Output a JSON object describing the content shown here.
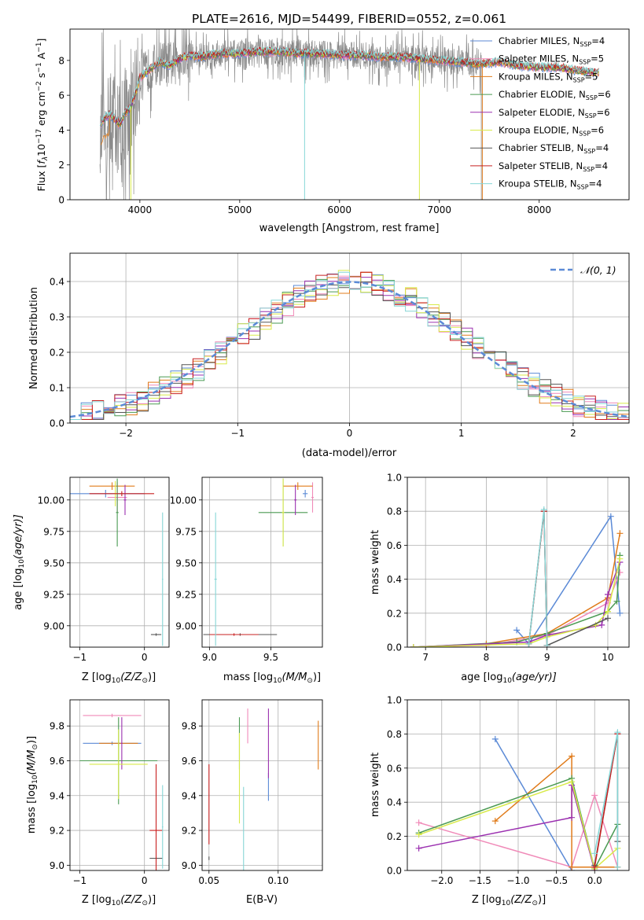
{
  "figure": {
    "title": "PLATE=2616, MJD=54499, FIBERID=0552, z=0.061"
  },
  "colors": {
    "chabrier_miles": "#5b8ad6",
    "salpeter_miles": "#f08ab8",
    "kroupa_miles": "#e07b1a",
    "chabrier_elodie": "#4a9a52",
    "salpeter_elodie": "#9b30b0",
    "kroupa_elodie": "#d8ea4a",
    "chabrier_stelib": "#555555",
    "salpeter_stelib": "#c82020",
    "kroupa_stelib": "#86d6d6",
    "observed": "#8a8a8a",
    "normal": "#5b8ad6"
  },
  "chart_data": [
    {
      "id": "spectrum",
      "type": "line",
      "xlabel": "wavelength [Angstrom, rest frame]",
      "ylabel_main": "Flux [",
      "ylabel_tail": "erg cm",
      "ylabel_tail2": " s",
      "ylabel_tail3": " A",
      "ylabel_flam": "f",
      "ylabel_scale": "10",
      "ylabel_exp17": "−17",
      "ylabel_exp2": "−2",
      "ylabel_exp1": "−1",
      "ylabel_close": "]",
      "xlim": [
        3300,
        8900
      ],
      "ylim": [
        0,
        9.8
      ],
      "xticks": [
        4000,
        5000,
        6000,
        7000,
        8000
      ],
      "yticks": [
        0,
        2,
        4,
        6,
        8
      ],
      "legend_position": "upper-right",
      "legend": [
        {
          "name": "Chabrier MILES",
          "n": "4",
          "color_key": "chabrier_miles"
        },
        {
          "name": "Salpeter MILES",
          "n": "5",
          "color_key": "salpeter_miles"
        },
        {
          "name": "Kroupa MILES",
          "n": "5",
          "color_key": "kroupa_miles"
        },
        {
          "name": "Chabrier ELODIE",
          "n": "6",
          "color_key": "chabrier_elodie"
        },
        {
          "name": "Salpeter ELODIE",
          "n": "6",
          "color_key": "salpeter_elodie"
        },
        {
          "name": "Kroupa ELODIE",
          "n": "6",
          "color_key": "kroupa_elodie"
        },
        {
          "name": "Chabrier STELIB",
          "n": "4",
          "color_key": "chabrier_stelib"
        },
        {
          "name": "Salpeter STELIB",
          "n": "4",
          "color_key": "salpeter_stelib"
        },
        {
          "name": "Kroupa STELIB",
          "n": "4",
          "color_key": "kroupa_stelib"
        }
      ],
      "legend_n_prefix": "N",
      "legend_n_sub": "SSP",
      "legend_n_eq": "=",
      "continuum": {
        "x": [
          3600,
          3650,
          3700,
          3750,
          3800,
          3850,
          3900,
          3950,
          4000,
          4100,
          4200,
          4300,
          4400,
          4500,
          4600,
          4800,
          5000,
          5200,
          5400,
          5600,
          5800,
          6000,
          6200,
          6400,
          6600,
          6800,
          7000,
          7200,
          7400,
          7600,
          7800,
          8000,
          8200,
          8400,
          8600
        ],
        "y": [
          4.3,
          4.7,
          4.9,
          4.6,
          4.3,
          5.0,
          5.2,
          6.0,
          7.0,
          7.5,
          7.9,
          7.7,
          8.1,
          8.3,
          8.2,
          8.4,
          8.4,
          8.5,
          8.5,
          8.4,
          8.4,
          8.3,
          8.3,
          8.2,
          8.2,
          8.1,
          8.0,
          7.9,
          7.8,
          7.9,
          7.7,
          7.6,
          7.6,
          7.4,
          7.3
        ]
      },
      "observed_xmax": 7420,
      "model_xmax": 8600,
      "model_drop_x": [
        3910,
        5650,
        6800,
        7430
      ]
    },
    {
      "id": "residuals",
      "type": "histogram",
      "xlabel": "(data-model)/error",
      "ylabel": "Normed distribution",
      "xlim": [
        -2.5,
        2.5
      ],
      "ylim": [
        0,
        0.48
      ],
      "xticks": [
        -2,
        -1,
        0,
        1,
        2
      ],
      "xtick_labels": [
        "−2",
        "−1",
        "0",
        "1",
        "2"
      ],
      "yticks": [
        0.0,
        0.1,
        0.2,
        0.3,
        0.4
      ],
      "ytick_labels": [
        "0.0",
        "0.1",
        "0.2",
        "0.3",
        "0.4"
      ],
      "bin_width": 0.1,
      "legend_label": "𝒩(0, 1)",
      "legend_position": "upper-right",
      "normal": {
        "mean": 0,
        "sigma": 1
      }
    },
    {
      "id": "age-vs-Z",
      "type": "errorbar",
      "xlabel_main": "Z [log",
      "xlabel_sub": "10",
      "xlabel_arg": "(Z/Z",
      "xlabel_sun": "⊙",
      "xlabel_close": ")]",
      "ylabel_main": "age  [log",
      "ylabel_sub": "10",
      "ylabel_arg": "(age/yr)]",
      "xlim": [
        -1.15,
        0.38
      ],
      "ylim": [
        8.83,
        10.18
      ],
      "xticks": [
        -1,
        0
      ],
      "xtick_labels": [
        "−1",
        "0"
      ],
      "yticks": [
        9.0,
        9.25,
        9.5,
        9.75,
        10.0
      ],
      "ytick_labels": [
        "9.00",
        "9.25",
        "9.50",
        "9.75",
        "10.00"
      ],
      "points": [
        {
          "c": "chabrier_miles",
          "x": -0.6,
          "xe": 0.6,
          "y": 10.05,
          "ye": 0.03
        },
        {
          "c": "salpeter_miles",
          "x": -0.42,
          "xe": 0.15,
          "y": 10.02,
          "ye": 0.12
        },
        {
          "c": "kroupa_miles",
          "x": -0.5,
          "xe": 0.35,
          "y": 10.11,
          "ye": 0.03
        },
        {
          "c": "chabrier_elodie",
          "x": -0.42,
          "xe": 0.02,
          "y": 9.9,
          "ye": 0.27
        },
        {
          "c": "salpeter_elodie",
          "x": -0.3,
          "xe": 0.02,
          "y": 10.0,
          "ye": 0.12
        },
        {
          "c": "kroupa_elodie",
          "x": -0.45,
          "xe": 0.03,
          "y": 10.05,
          "ye": 0.1
        },
        {
          "c": "chabrier_stelib",
          "x": 0.18,
          "xe": 0.08,
          "y": 8.93,
          "ye": 0.01
        },
        {
          "c": "salpeter_stelib",
          "x": -0.35,
          "xe": 0.5,
          "y": 10.05,
          "ye": 0.02
        },
        {
          "c": "kroupa_stelib",
          "x": 0.28,
          "xe": 0.01,
          "y": 9.37,
          "ye": 0.53
        }
      ]
    },
    {
      "id": "age-vs-mass",
      "type": "errorbar",
      "xlabel_main": "mass [log",
      "xlabel_sub": "10",
      "xlabel_arg": "(M/M",
      "xlabel_sun": "⊙",
      "xlabel_close": ")]",
      "xlim": [
        8.94,
        9.92
      ],
      "ylim": [
        8.83,
        10.18
      ],
      "xticks": [
        9.0,
        9.5
      ],
      "xtick_labels": [
        "9.0",
        "9.5"
      ],
      "yticks": [
        9.0,
        9.25,
        9.5,
        9.75,
        10.0
      ],
      "ytick_labels": [
        "9.00",
        "9.25",
        "9.50",
        "9.75",
        "10.00"
      ],
      "points": [
        {
          "c": "chabrier_miles",
          "x": 9.78,
          "xe": 0.02,
          "y": 10.05,
          "ye": 0.03
        },
        {
          "c": "salpeter_miles",
          "x": 9.84,
          "xe": 0.01,
          "y": 10.02,
          "ye": 0.12
        },
        {
          "c": "kroupa_miles",
          "x": 9.72,
          "xe": 0.12,
          "y": 10.11,
          "ye": 0.03
        },
        {
          "c": "chabrier_elodie",
          "x": 9.6,
          "xe": 0.2,
          "y": 9.9,
          "ye": 0.27
        },
        {
          "c": "salpeter_elodie",
          "x": 9.7,
          "xe": 0.01,
          "y": 10.0,
          "ye": 0.12
        },
        {
          "c": "kroupa_elodie",
          "x": 9.6,
          "xe": 0.01,
          "y": 9.9,
          "ye": 0.27
        },
        {
          "c": "chabrier_stelib",
          "x": 9.25,
          "xe": 0.3,
          "y": 8.93,
          "ye": 0.01
        },
        {
          "c": "salpeter_stelib",
          "x": 9.2,
          "xe": 0.2,
          "y": 8.93,
          "ye": 0.01
        },
        {
          "c": "kroupa_stelib",
          "x": 9.05,
          "xe": 0.01,
          "y": 9.37,
          "ye": 0.53
        }
      ]
    },
    {
      "id": "weight-vs-age",
      "type": "line",
      "xlabel_main": "age  [log",
      "xlabel_sub": "10",
      "xlabel_arg": "(age/yr)]",
      "ylabel": "mass weight",
      "xlim": [
        6.7,
        10.35
      ],
      "ylim": [
        0,
        1.0
      ],
      "xticks": [
        7,
        8,
        9,
        10
      ],
      "xtick_labels": [
        "7",
        "8",
        "9",
        "10"
      ],
      "yticks": [
        0.0,
        0.2,
        0.4,
        0.6,
        0.8,
        1.0
      ],
      "ytick_labels": [
        "0.0",
        "0.2",
        "0.4",
        "0.6",
        "0.8",
        "1.0"
      ],
      "series": [
        {
          "c": "chabrier_miles",
          "x": [
            8.5,
            8.7,
            10.05,
            10.2
          ],
          "y": [
            0.1,
            0.02,
            0.77,
            0.2
          ]
        },
        {
          "c": "salpeter_miles",
          "x": [
            6.8,
            8.0,
            9.0,
            10.0,
            10.2
          ],
          "y": [
            0.0,
            0.01,
            0.07,
            0.26,
            0.44
          ]
        },
        {
          "c": "kroupa_miles",
          "x": [
            6.8,
            8.0,
            9.0,
            10.0,
            10.2
          ],
          "y": [
            0.0,
            0.02,
            0.08,
            0.29,
            0.67
          ]
        },
        {
          "c": "chabrier_elodie",
          "x": [
            6.8,
            8.5,
            9.0,
            10.0,
            10.15,
            10.2
          ],
          "y": [
            0.0,
            0.03,
            0.08,
            0.21,
            0.27,
            0.54
          ]
        },
        {
          "c": "salpeter_elodie",
          "x": [
            6.8,
            8.7,
            9.0,
            9.9,
            10.0,
            10.2
          ],
          "y": [
            0.0,
            0.03,
            0.07,
            0.13,
            0.31,
            0.5
          ]
        },
        {
          "c": "kroupa_elodie",
          "x": [
            6.8,
            8.7,
            9.0,
            9.8,
            10.0,
            10.2
          ],
          "y": [
            0.0,
            0.02,
            0.06,
            0.13,
            0.21,
            0.52
          ]
        },
        {
          "c": "chabrier_stelib",
          "x": [
            8.7,
            8.95,
            9.0,
            10.0
          ],
          "y": [
            0.02,
            0.8,
            0.01,
            0.17
          ]
        },
        {
          "c": "salpeter_stelib",
          "x": [
            8.7,
            8.95,
            9.0
          ],
          "y": [
            0.02,
            0.8,
            0.01
          ]
        },
        {
          "c": "kroupa_stelib",
          "x": [
            8.7,
            8.95,
            9.0
          ],
          "y": [
            0.02,
            0.81,
            0.01
          ]
        }
      ]
    },
    {
      "id": "mass-vs-Z",
      "type": "errorbar",
      "xlabel_main": "Z [log",
      "xlabel_sub": "10",
      "xlabel_arg": "(Z/Z",
      "xlabel_sun": "⊙",
      "xlabel_close": ")]",
      "ylabel_main": "mass [log",
      "ylabel_sub": "10",
      "ylabel_arg": "(M/M",
      "ylabel_sun": "⊙",
      "ylabel_close": ")]",
      "xlim": [
        -1.15,
        0.38
      ],
      "ylim": [
        8.97,
        9.95
      ],
      "xticks": [
        -1,
        0
      ],
      "xtick_labels": [
        "−1",
        "0"
      ],
      "yticks": [
        9.0,
        9.2,
        9.4,
        9.6,
        9.8
      ],
      "ytick_labels": [
        "9.0",
        "9.2",
        "9.4",
        "9.6",
        "9.8"
      ],
      "points": [
        {
          "c": "chabrier_miles",
          "x": -0.5,
          "xe": 0.45,
          "y": 9.7,
          "ye": 0.01
        },
        {
          "c": "salpeter_miles",
          "x": -0.5,
          "xe": 0.45,
          "y": 9.86,
          "ye": 0.01
        },
        {
          "c": "kroupa_miles",
          "x": -0.4,
          "xe": 0.3,
          "y": 9.7,
          "ye": 0.01
        },
        {
          "c": "chabrier_elodie",
          "x": -0.4,
          "xe": 0.6,
          "y": 9.6,
          "ye": 0.25
        },
        {
          "c": "salpeter_elodie",
          "x": -0.35,
          "xe": 0.01,
          "y": 9.7,
          "ye": 0.15
        },
        {
          "c": "kroupa_elodie",
          "x": -0.4,
          "xe": 0.45,
          "y": 9.58,
          "ye": 0.2
        },
        {
          "c": "chabrier_stelib",
          "x": 0.18,
          "xe": 0.1,
          "y": 9.04,
          "ye": 0.01
        },
        {
          "c": "salpeter_stelib",
          "x": 0.18,
          "xe": 0.1,
          "y": 9.2,
          "ye": 0.38
        },
        {
          "c": "kroupa_stelib",
          "x": 0.28,
          "xe": 0.01,
          "y": 9.22,
          "ye": 0.24
        }
      ]
    },
    {
      "id": "mass-vs-ebv",
      "type": "errorbar",
      "xlabel": "E(B-V)",
      "xlim": [
        0.045,
        0.132
      ],
      "ylim": [
        8.97,
        9.95
      ],
      "xticks": [
        0.05,
        0.1
      ],
      "xtick_labels": [
        "0.05",
        "0.10"
      ],
      "yticks": [
        9.0,
        9.2,
        9.4,
        9.6,
        9.8
      ],
      "ytick_labels": [
        "9.0",
        "9.2",
        "9.4",
        "9.6",
        "9.8"
      ],
      "points": [
        {
          "c": "chabrier_miles",
          "x": 0.093,
          "xe": 0.0,
          "y": 9.45,
          "ye": 0.08
        },
        {
          "c": "salpeter_miles",
          "x": 0.078,
          "xe": 0.0,
          "y": 9.8,
          "ye": 0.1
        },
        {
          "c": "kroupa_miles",
          "x": 0.129,
          "xe": 0.0,
          "y": 9.69,
          "ye": 0.14
        },
        {
          "c": "chabrier_elodie",
          "x": 0.072,
          "xe": 0.0,
          "y": 9.7,
          "ye": 0.15
        },
        {
          "c": "salpeter_elodie",
          "x": 0.093,
          "xe": 0.0,
          "y": 9.7,
          "ye": 0.2
        },
        {
          "c": "kroupa_elodie",
          "x": 0.072,
          "xe": 0.0,
          "y": 9.5,
          "ye": 0.26
        },
        {
          "c": "chabrier_stelib",
          "x": 0.05,
          "xe": 0.0,
          "y": 9.04,
          "ye": 0.01
        },
        {
          "c": "salpeter_stelib",
          "x": 0.05,
          "xe": 0.0,
          "y": 9.35,
          "ye": 0.23
        },
        {
          "c": "kroupa_stelib",
          "x": 0.075,
          "xe": 0.0,
          "y": 9.2,
          "ye": 0.25
        }
      ]
    },
    {
      "id": "weight-vs-Z",
      "type": "line",
      "xlabel_main": "Z [log",
      "xlabel_sub": "10",
      "xlabel_arg": "(Z/Z",
      "xlabel_sun": "⊙",
      "xlabel_close": ")]",
      "ylabel": "mass weight",
      "xlim": [
        -2.45,
        0.45
      ],
      "ylim": [
        0,
        1.0
      ],
      "xticks": [
        -2.0,
        -1.5,
        -1.0,
        -0.5,
        0.0
      ],
      "xtick_labels": [
        "−2.0",
        "−1.5",
        "−1.0",
        "−0.5",
        "0.0"
      ],
      "yticks": [
        0.0,
        0.2,
        0.4,
        0.6,
        0.8,
        1.0
      ],
      "ytick_labels": [
        "0.0",
        "0.2",
        "0.4",
        "0.6",
        "0.8",
        "1.0"
      ],
      "series": [
        {
          "c": "chabrier_miles",
          "x": [
            -1.3,
            -0.3
          ],
          "y": [
            0.77,
            0.0
          ]
        },
        {
          "c": "salpeter_miles",
          "x": [
            -2.3,
            -0.3,
            0.0,
            0.3
          ],
          "y": [
            0.28,
            0.02,
            0.44,
            0.02
          ]
        },
        {
          "c": "kroupa_miles",
          "x": [
            -1.3,
            -0.3,
            -0.3,
            0.3
          ],
          "y": [
            0.29,
            0.67,
            0.02,
            0.02
          ]
        },
        {
          "c": "chabrier_elodie",
          "x": [
            -2.3,
            -0.3,
            0.0,
            0.3
          ],
          "y": [
            0.22,
            0.54,
            0.01,
            0.27
          ]
        },
        {
          "c": "salpeter_elodie",
          "x": [
            -2.3,
            -0.3,
            -0.3,
            0.0
          ],
          "y": [
            0.13,
            0.31,
            0.5,
            0.0
          ]
        },
        {
          "c": "kroupa_elodie",
          "x": [
            -2.3,
            -0.3,
            0.0,
            0.3
          ],
          "y": [
            0.21,
            0.52,
            0.01,
            0.13
          ]
        },
        {
          "c": "chabrier_stelib",
          "x": [
            0.0,
            0.3,
            0.3
          ],
          "y": [
            0.03,
            0.8,
            0.17
          ]
        },
        {
          "c": "salpeter_stelib",
          "x": [
            0.0,
            0.3
          ],
          "y": [
            0.02,
            0.8
          ]
        },
        {
          "c": "kroupa_stelib",
          "x": [
            0.0,
            0.3,
            0.3
          ],
          "y": [
            0.1,
            0.81,
            0.02
          ]
        }
      ]
    }
  ]
}
